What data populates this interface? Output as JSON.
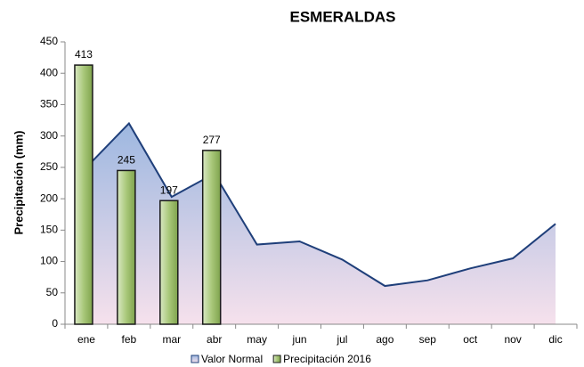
{
  "chart_data": {
    "type": "bar-area",
    "title": "ESMERALDAS",
    "y_label": "Precipitación (mm)",
    "categories": [
      "ene",
      "feb",
      "mar",
      "abr",
      "may",
      "jun",
      "jul",
      "ago",
      "sep",
      "oct",
      "nov",
      "dic"
    ],
    "series": [
      {
        "name": "Valor Normal",
        "type": "area",
        "color": "#1f3f7a",
        "values": [
          250,
          320,
          203,
          240,
          127,
          132,
          103,
          61,
          70,
          89,
          105,
          160
        ]
      },
      {
        "name": "Precipitación 2016",
        "type": "bar",
        "color": "#9bbb59",
        "values": [
          413,
          245,
          197,
          277,
          null,
          null,
          null,
          null,
          null,
          null,
          null,
          null
        ]
      }
    ],
    "ylim": [
      0,
      450
    ],
    "yticks": [
      0,
      50,
      100,
      150,
      200,
      250,
      300,
      350,
      400,
      450
    ]
  }
}
